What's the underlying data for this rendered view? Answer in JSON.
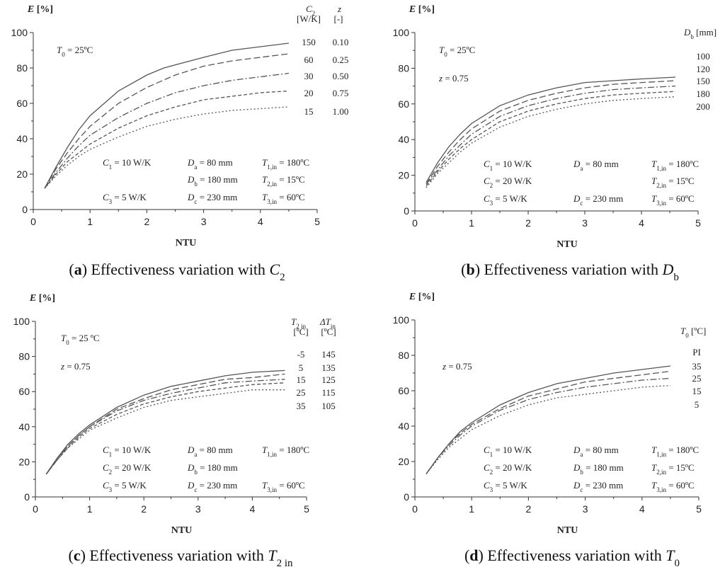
{
  "chart_data": [
    {
      "panel": "a",
      "type": "line",
      "caption": {
        "letter": "a",
        "text": "Effectiveness variation with ",
        "var": "C",
        "sub": "2"
      },
      "ylabel": "E [%]",
      "xlabel": "NTU",
      "xlim": [
        0,
        5
      ],
      "ylim": [
        0,
        100
      ],
      "xticks": [
        "0",
        "1",
        "2",
        "3",
        "4",
        "5"
      ],
      "yticks": [
        "0",
        "20",
        "40",
        "60",
        "80",
        "100"
      ],
      "legend_headers": [
        {
          "main": "C",
          "sub": "2",
          "unit": "[W/K]"
        },
        {
          "main": "z",
          "sub": "",
          "unit": "[-]"
        }
      ],
      "series": [
        {
          "name": "150",
          "label2": "0.10",
          "dash": "solid",
          "x": [
            0.2,
            0.4,
            0.6,
            0.8,
            1,
            1.5,
            2,
            2.3,
            3,
            3.5,
            4,
            4.5
          ],
          "y": [
            12,
            24,
            35,
            45,
            53,
            67,
            76,
            80,
            86,
            90,
            92,
            94
          ]
        },
        {
          "name": "60",
          "label2": "0.25",
          "dash": "dashed",
          "x": [
            0.2,
            0.4,
            0.6,
            0.8,
            1,
            1.5,
            2,
            2.5,
            3,
            3.5,
            4,
            4.5
          ],
          "y": [
            12,
            23,
            32,
            40,
            47,
            60,
            69,
            76,
            81,
            84,
            86,
            88
          ]
        },
        {
          "name": "30",
          "label2": "0.50",
          "dash": "dashdot",
          "x": [
            0.2,
            0.4,
            0.6,
            0.8,
            1,
            1.5,
            2,
            2.5,
            3,
            3.5,
            4,
            4.5
          ],
          "y": [
            12,
            21,
            29,
            36,
            42,
            52,
            60,
            66,
            70,
            73,
            75,
            77
          ]
        },
        {
          "name": "20",
          "label2": "0.75",
          "dash": "dashed2",
          "x": [
            0.2,
            0.4,
            0.6,
            0.8,
            1,
            1.5,
            2,
            2.5,
            3,
            3.5,
            4,
            4.5
          ],
          "y": [
            12,
            20,
            27,
            32,
            37,
            46,
            53,
            58,
            62,
            64,
            66,
            67
          ]
        },
        {
          "name": "15",
          "label2": "1.00",
          "dash": "dotted",
          "x": [
            0.2,
            0.4,
            0.6,
            0.8,
            1,
            1.5,
            2,
            2.5,
            3,
            3.5,
            4,
            4.5
          ],
          "y": [
            12,
            19,
            25,
            30,
            34,
            41,
            47,
            51,
            54,
            56,
            57,
            58
          ]
        }
      ],
      "annotations": {
        "T0": "= 25ºC",
        "z": "",
        "C1": "= 10 W/K",
        "C2": "",
        "C3": "=  5 W/K",
        "Da": "=   80 mm",
        "Db": "= 180 mm",
        "Dc": "= 230 mm",
        "T1in": "= 180ºC",
        "T2in": "=  15ºC",
        "T3in": "=  60ºC"
      }
    },
    {
      "panel": "b",
      "type": "line",
      "caption": {
        "letter": "b",
        "text": "Effectiveness variation with ",
        "var": "D",
        "sub": "b"
      },
      "ylabel": "E [%]",
      "xlabel": "NTU",
      "xlim": [
        0,
        5
      ],
      "ylim": [
        0,
        100
      ],
      "xticks": [
        "0",
        "1",
        "2",
        "3",
        "4",
        "5"
      ],
      "yticks": [
        "0",
        "20",
        "40",
        "60",
        "80",
        "100"
      ],
      "legend_headers": [
        {
          "main": "D",
          "sub": "b",
          "unit": "[mm]"
        }
      ],
      "series": [
        {
          "name": "100",
          "dash": "solid",
          "x": [
            0.2,
            0.4,
            0.6,
            0.8,
            1,
            1.5,
            2,
            2.5,
            3,
            3.5,
            4,
            4.6
          ],
          "y": [
            16,
            27,
            36,
            43,
            49,
            59,
            65,
            69,
            72,
            73,
            74,
            75
          ]
        },
        {
          "name": "120",
          "dash": "dashed",
          "x": [
            0.2,
            0.4,
            0.6,
            0.8,
            1,
            1.5,
            2,
            2.5,
            3,
            3.5,
            4,
            4.6
          ],
          "y": [
            15,
            25,
            33,
            40,
            46,
            56,
            62,
            66,
            69,
            71,
            72,
            73
          ]
        },
        {
          "name": "150",
          "dash": "dashdot",
          "x": [
            0.2,
            0.4,
            0.6,
            0.8,
            1,
            1.5,
            2,
            2.5,
            3,
            3.5,
            4,
            4.6
          ],
          "y": [
            15,
            23,
            31,
            37,
            43,
            53,
            59,
            63,
            66,
            68,
            69,
            70
          ]
        },
        {
          "name": "180",
          "dash": "dashed2",
          "x": [
            0.2,
            0.4,
            0.6,
            0.8,
            1,
            1.5,
            2,
            2.5,
            3,
            3.5,
            4,
            4.6
          ],
          "y": [
            14,
            22,
            29,
            35,
            40,
            50,
            56,
            60,
            63,
            65,
            66,
            67
          ]
        },
        {
          "name": "200",
          "dash": "dotted",
          "x": [
            0.2,
            0.4,
            0.6,
            0.8,
            1,
            1.5,
            2,
            2.5,
            3,
            3.5,
            4,
            4.6
          ],
          "y": [
            13,
            21,
            27,
            33,
            38,
            47,
            53,
            57,
            60,
            62,
            63,
            64
          ]
        }
      ],
      "annotations": {
        "T0": "= 25ºC",
        "z": "= 0.75",
        "C1": "= 10 W/K",
        "C2": "= 20 W/K",
        "C3": "=  5  W/K",
        "Da": "= 80 mm",
        "Db": "",
        "Dc": "= 230 mm",
        "T1in": "= 180ºC",
        "T2in": "=  15ºC",
        "T3in": "=  60ºC"
      }
    },
    {
      "panel": "c",
      "type": "line",
      "caption": {
        "letter": "c",
        "text": "Effectiveness variation with ",
        "var": "T",
        "sub": "2 in"
      },
      "ylabel": "E [%]",
      "xlabel": "NTU",
      "xlim": [
        0,
        5
      ],
      "ylim": [
        0,
        100
      ],
      "xticks": [
        "0",
        "1",
        "2",
        "3",
        "4",
        "5"
      ],
      "yticks": [
        "0",
        "20",
        "40",
        "60",
        "80",
        "100"
      ],
      "legend_headers": [
        {
          "main": "T",
          "sub": "2 in",
          "unit": "[ºC]"
        },
        {
          "main": "ΔT",
          "sub": "in",
          "unit": "[ºC]"
        }
      ],
      "series": [
        {
          "name": "-5",
          "label2": "145",
          "dash": "solid",
          "x": [
            0.2,
            0.4,
            0.6,
            0.8,
            1,
            1.5,
            2,
            2.5,
            3,
            3.5,
            4,
            4.6
          ],
          "y": [
            13,
            22,
            30,
            36,
            41,
            51,
            58,
            63,
            66,
            69,
            71,
            72
          ]
        },
        {
          "name": "5",
          "label2": "135",
          "dash": "dashed",
          "x": [
            0.2,
            0.4,
            0.6,
            0.8,
            1,
            1.5,
            2,
            2.5,
            3,
            3.5,
            4,
            4.6
          ],
          "y": [
            13,
            22,
            29,
            35,
            40,
            50,
            56,
            61,
            64,
            67,
            68,
            70
          ]
        },
        {
          "name": "15",
          "label2": "125",
          "dash": "dashdot",
          "x": [
            0.2,
            0.4,
            0.6,
            0.8,
            1,
            1.5,
            2,
            2.5,
            3,
            3.5,
            4,
            4.6
          ],
          "y": [
            13,
            21,
            29,
            35,
            40,
            49,
            55,
            59,
            62,
            65,
            66,
            67
          ]
        },
        {
          "name": "25",
          "label2": "115",
          "dash": "dashed2",
          "x": [
            0.2,
            0.4,
            0.6,
            0.8,
            1,
            1.5,
            2,
            2.5,
            3,
            3.5,
            4,
            4.6
          ],
          "y": [
            13,
            21,
            28,
            34,
            39,
            47,
            53,
            57,
            60,
            62,
            64,
            65
          ]
        },
        {
          "name": "35",
          "label2": "105",
          "dash": "dotted",
          "x": [
            0.2,
            0.4,
            0.6,
            0.8,
            1,
            1.5,
            2,
            2.5,
            3,
            3.5,
            4,
            4.6
          ],
          "y": [
            13,
            21,
            28,
            33,
            38,
            45,
            51,
            55,
            57,
            59,
            61,
            61
          ]
        }
      ],
      "annotations": {
        "T0": "= 25 ºC",
        "z": "= 0.75",
        "C1": "= 10 W/K",
        "C2": "= 20 W/K",
        "C3": "=  5 W/K",
        "Da": "=   80 mm",
        "Db": "= 180 mm",
        "Dc": "= 230 mm",
        "T1in": "= 180ºC",
        "T2in": "",
        "T3in": "=   60ºC"
      }
    },
    {
      "panel": "d",
      "type": "line",
      "caption": {
        "letter": "d",
        "text": "Effectiveness variation with ",
        "var": "T",
        "sub": "0"
      },
      "ylabel": "E [%]",
      "xlabel": "NTU",
      "xlim": [
        0,
        5
      ],
      "ylim": [
        0,
        100
      ],
      "xticks": [
        "0",
        "1",
        "2",
        "3",
        "4",
        "5"
      ],
      "yticks": [
        "0",
        "20",
        "40",
        "60",
        "80",
        "100"
      ],
      "legend_headers": [
        {
          "main": "T",
          "sub": "0",
          "unit": "[ºC]"
        }
      ],
      "legend_extra": "PI",
      "series": [
        {
          "name": "35",
          "dash": "solid",
          "x": [
            0.2,
            0.4,
            0.6,
            0.8,
            1,
            1.5,
            2,
            2.5,
            3,
            3.5,
            4,
            4.5
          ],
          "y": [
            13,
            22,
            30,
            37,
            42,
            52,
            59,
            64,
            67,
            70,
            72,
            74
          ]
        },
        {
          "name": "25",
          "dash": "dashed",
          "x": [
            0.2,
            0.4,
            0.6,
            0.8,
            1,
            1.5,
            2,
            2.5,
            3,
            3.5,
            4,
            4.5
          ],
          "y": [
            13,
            22,
            30,
            36,
            41,
            50,
            57,
            61,
            65,
            67,
            69,
            71
          ]
        },
        {
          "name": "15",
          "dash": "dashdot",
          "x": [
            0.2,
            0.4,
            0.6,
            0.8,
            1,
            1.5,
            2,
            2.5,
            3,
            3.5,
            4,
            4.5
          ],
          "y": [
            13,
            22,
            29,
            35,
            40,
            49,
            55,
            59,
            62,
            64,
            66,
            67
          ]
        },
        {
          "name": "5",
          "dash": "dotted",
          "x": [
            0.2,
            0.4,
            0.6,
            0.8,
            1,
            1.5,
            2,
            2.5,
            3,
            3.5,
            4,
            4.5
          ],
          "y": [
            13,
            21,
            28,
            33,
            38,
            46,
            52,
            56,
            58,
            60,
            62,
            63
          ]
        }
      ],
      "annotations": {
        "T0": "",
        "z": "= 0.75",
        "C1": "= 10 W/K",
        "C2": "= 20 W/K",
        "C3": "=  5  W/K",
        "Da": "=   80 mm",
        "Db": "= 180 mm",
        "Dc": "= 230 mm",
        "T1in": "= 180ºC",
        "T2in": "=  15ºC",
        "T3in": "=  60ºC"
      }
    }
  ]
}
